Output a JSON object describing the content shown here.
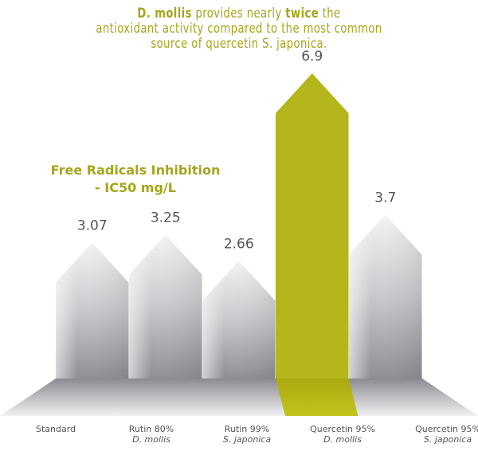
{
  "chart_data": {
    "type": "bar",
    "title_parts": [
      {
        "text": "D. mollis",
        "bold": true
      },
      {
        "text": " provides nearly ",
        "bold": false
      },
      {
        "text": "twice",
        "bold": true
      },
      {
        "text": " the",
        "bold": false
      }
    ],
    "title_line2": "antioxidant activity compared to the most common",
    "title_line3": "source of quercetin S. japonica.",
    "subtitle": "Free Radicals Inhibition - IC50 mg/L",
    "categories": [
      {
        "line1": "Standard",
        "line2": ""
      },
      {
        "line1": "Rutin 80%",
        "line2": "D. mollis"
      },
      {
        "line1": "Rutin 99%",
        "line2": "S. japonica"
      },
      {
        "line1": "Quercetin 95%",
        "line2": "D. mollis"
      },
      {
        "line1": "Quercetin 95%",
        "line2": "S. japonica"
      }
    ],
    "values": [
      3.07,
      3.25,
      2.66,
      6.9,
      3.7
    ],
    "value_labels": [
      "3.07",
      "3.25",
      "2.66",
      "6.9",
      "3.7"
    ],
    "highlight_index": 3,
    "colors": {
      "title": "#a5a51a",
      "highlight": "#b5b51c",
      "bar": "#c8c8cc",
      "label": "#555555"
    },
    "grid": false
  }
}
